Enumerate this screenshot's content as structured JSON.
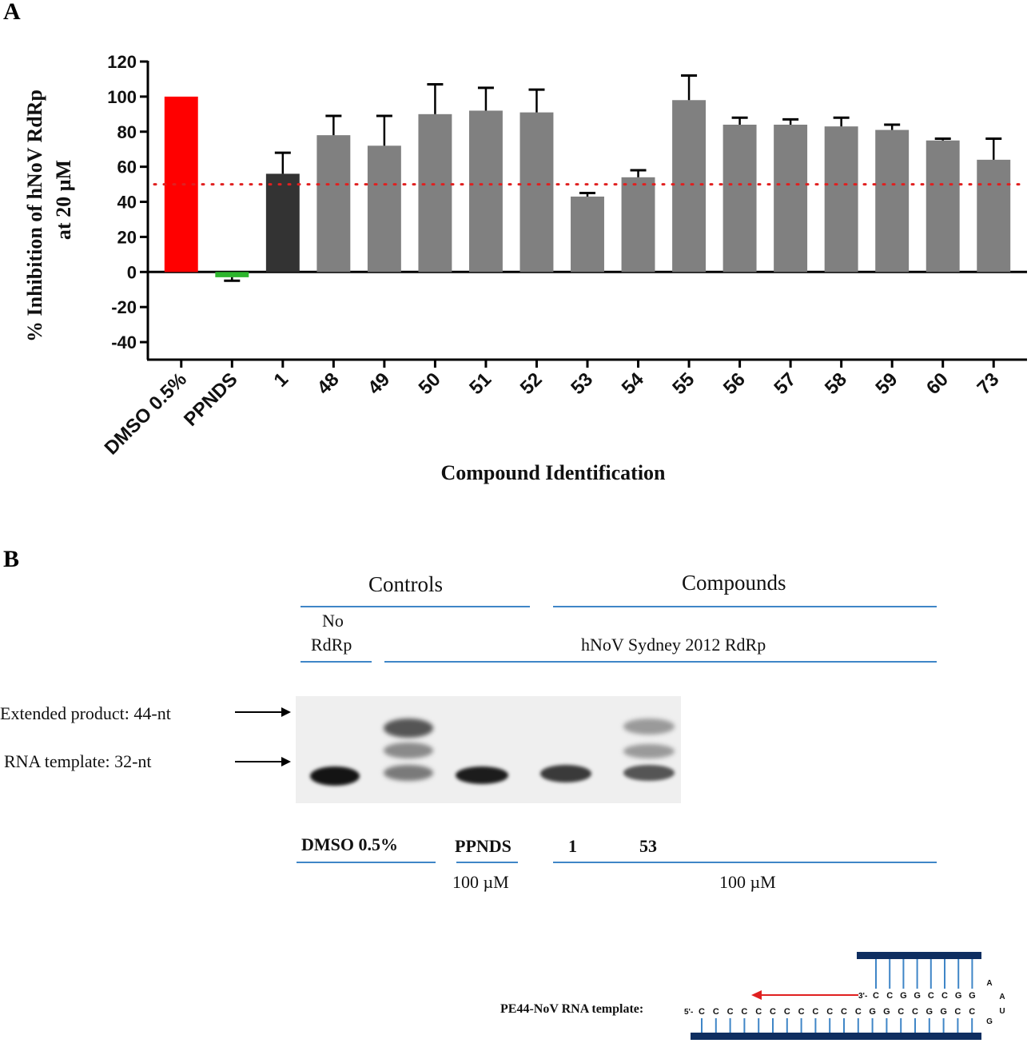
{
  "panel_a_label": "A",
  "panel_b_label": "B",
  "chart_data": {
    "type": "bar",
    "title": "",
    "ylabel_line1": "% Inhibition of hNoV  RdRp",
    "ylabel_line2": "at 20 µM",
    "xlabel": "Compound Identification",
    "ylim": [
      -50,
      120
    ],
    "yticks": [
      120,
      100,
      80,
      60,
      40,
      20,
      0,
      -20,
      -40
    ],
    "reference_line": 50,
    "categories": [
      "DMSO 0.5%",
      "PPNDS",
      "1",
      "48",
      "49",
      "50",
      "51",
      "52",
      "53",
      "54",
      "55",
      "56",
      "57",
      "58",
      "59",
      "60",
      "73"
    ],
    "values": [
      100,
      -3,
      56,
      78,
      72,
      90,
      92,
      91,
      43,
      54,
      98,
      84,
      84,
      83,
      81,
      75,
      64
    ],
    "errors": [
      0,
      2,
      12,
      11,
      17,
      17,
      13,
      13,
      2,
      4,
      14,
      4,
      3,
      5,
      3,
      1,
      12
    ],
    "colors": [
      "#ff0000",
      "#2db52d",
      "#333333",
      "#808080",
      "#808080",
      "#808080",
      "#808080",
      "#808080",
      "#808080",
      "#808080",
      "#808080",
      "#808080",
      "#808080",
      "#808080",
      "#808080",
      "#808080",
      "#808080"
    ],
    "reference_color": "#e02020"
  },
  "gel": {
    "controls_header": "Controls",
    "compounds_header": "Compounds",
    "no_rdrp_line1": "No",
    "no_rdrp_line2": "RdRp",
    "enzyme_label": "hNoV Sydney 2012 RdRp",
    "extended_label": "Extended product: 44-nt",
    "template_label": "RNA template: 32-nt",
    "lane_dmso": "DMSO  0.5%",
    "lane_ppnds": "PPNDS",
    "lane_1": "1",
    "lane_53": "53",
    "conc_ppnds": "100 µM",
    "conc_compounds": "100 µM"
  },
  "schematic": {
    "label": "PE44-NoV  RNA template:",
    "five_prime": "5'-",
    "three_prime": "3'-",
    "bottom_seq": [
      "C",
      "C",
      "C",
      "C",
      "C",
      "C",
      "C",
      "C",
      "C",
      "C",
      "C",
      "C",
      "G",
      "G",
      "C",
      "C",
      "G",
      "G",
      "C",
      "C"
    ],
    "top_seq": [
      "C",
      "C",
      "G",
      "G",
      "C",
      "C",
      "G",
      "G"
    ],
    "loop": [
      "A",
      "A",
      "U",
      "G"
    ]
  }
}
